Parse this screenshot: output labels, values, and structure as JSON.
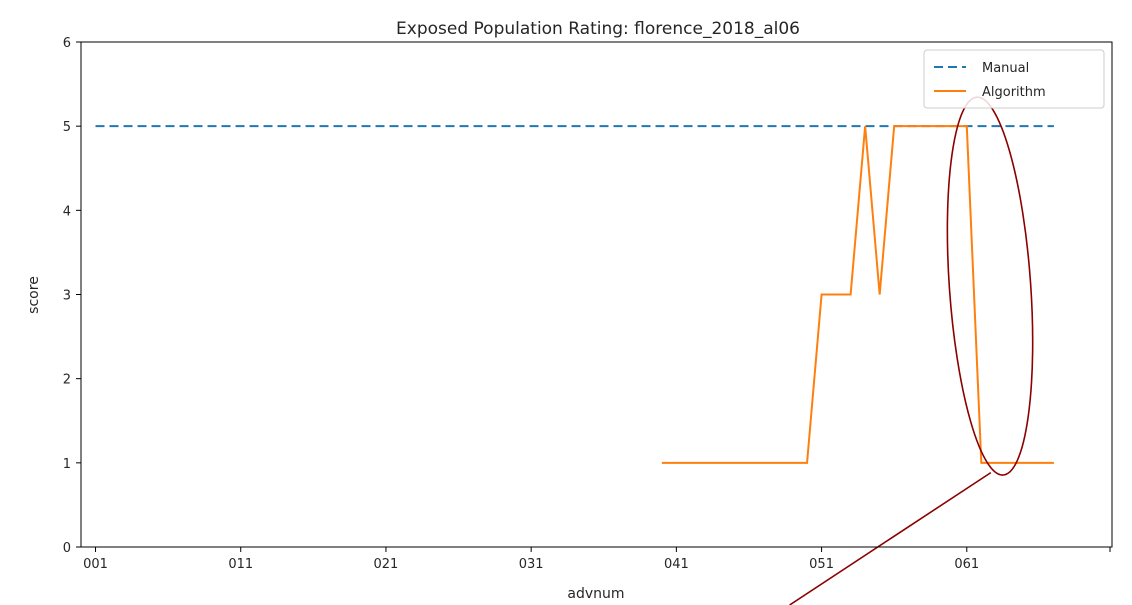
{
  "chart_data": {
    "type": "line",
    "title": "Exposed Population Rating: florence_2018_al06",
    "xlabel": "advnum",
    "ylabel": "score",
    "xlim": [
      -1,
      70
    ],
    "ylim": [
      0,
      6
    ],
    "x_ticks": [
      {
        "value": 0,
        "label": "001"
      },
      {
        "value": 10,
        "label": "011"
      },
      {
        "value": 20,
        "label": "021"
      },
      {
        "value": 30,
        "label": "031"
      },
      {
        "value": 40,
        "label": "041"
      },
      {
        "value": 50,
        "label": "051"
      },
      {
        "value": 60,
        "label": "061"
      }
    ],
    "y_ticks": [
      0,
      1,
      2,
      3,
      4,
      5,
      6
    ],
    "grid": false,
    "legend_position": "top-right",
    "series": [
      {
        "name": "Manual",
        "color": "#1f77b4",
        "style": "dashed",
        "x": [
          0,
          66
        ],
        "y": [
          5,
          5
        ]
      },
      {
        "name": "Algorithm",
        "color": "#ff7f0e",
        "style": "solid",
        "x": [
          39,
          49,
          50,
          52,
          53,
          54,
          55,
          60,
          61,
          66
        ],
        "y": [
          1,
          1,
          3,
          3,
          5,
          3,
          5,
          5,
          1,
          1
        ]
      }
    ],
    "annotations": [
      {
        "type": "ellipse",
        "color": "#8b0000",
        "cx": 61.6,
        "cy": 3.1,
        "rx": 2.8,
        "ry": 2.25,
        "pointer_to": [
          47.8,
          -0.5
        ]
      }
    ]
  }
}
